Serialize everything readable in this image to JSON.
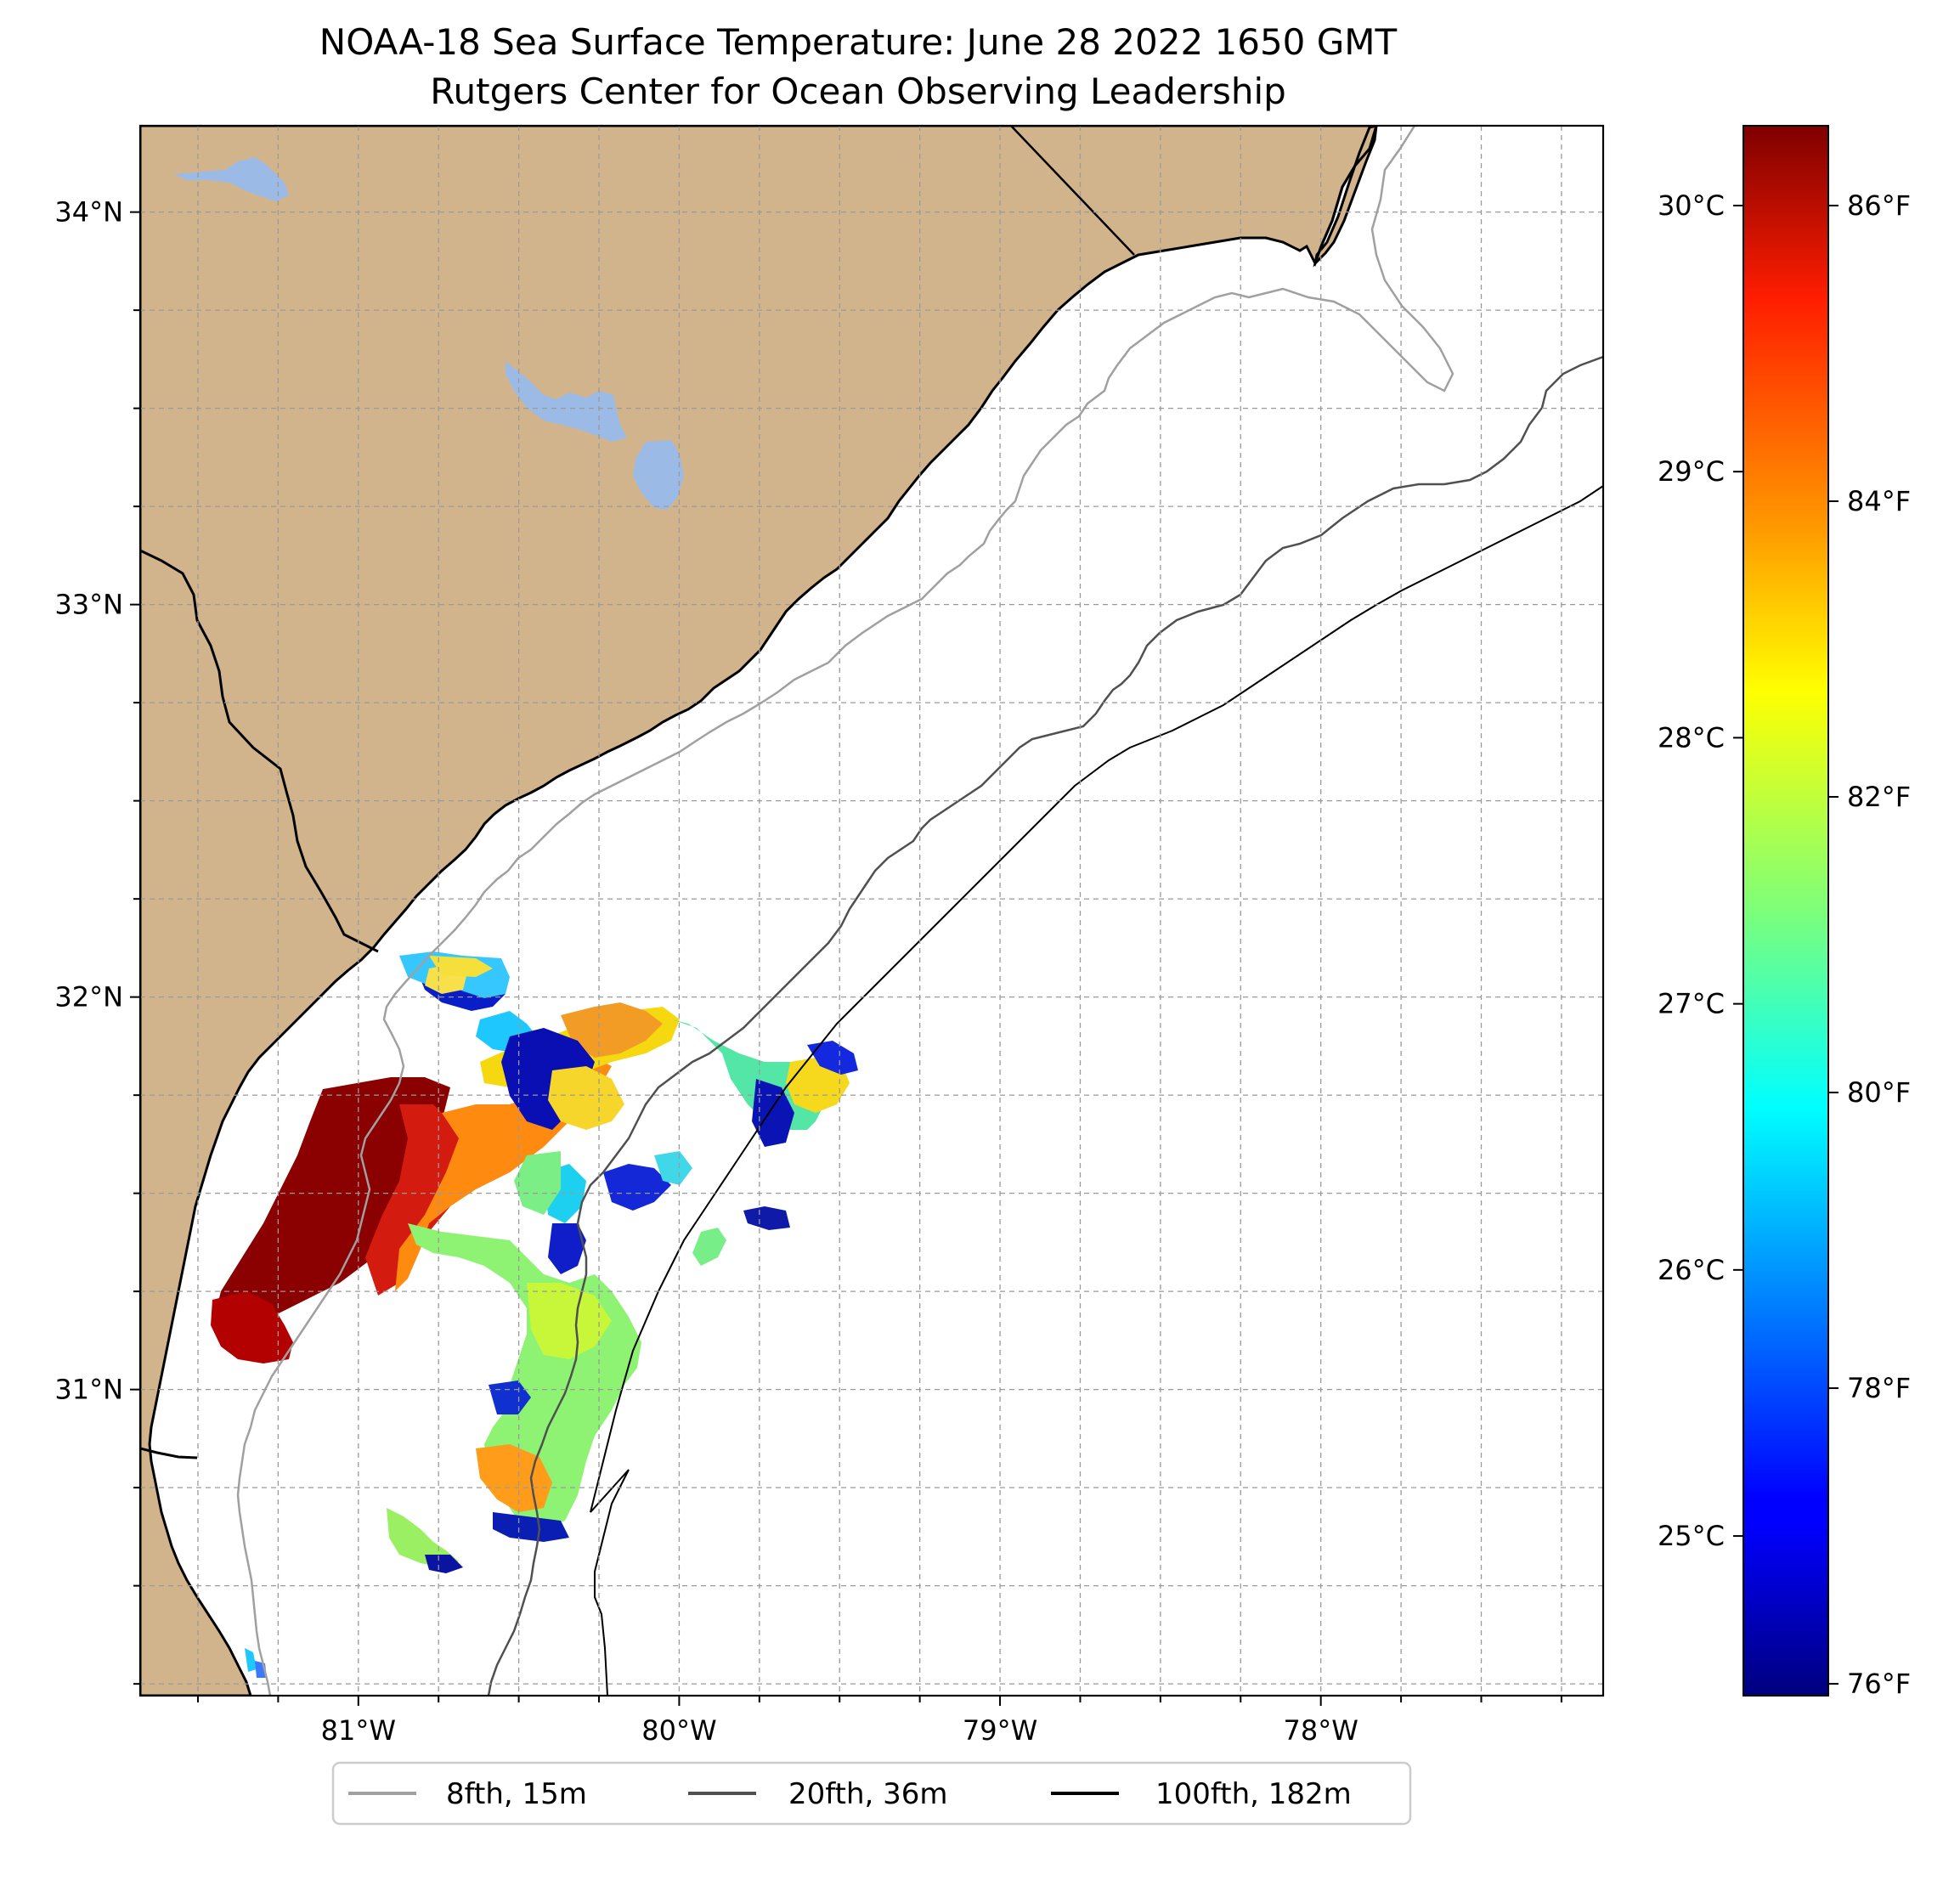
{
  "title_line1": "NOAA-18 Sea Surface Temperature: June 28 2022 1650 GMT",
  "title_line2": "Rutgers Center for Ocean Observing Leadership",
  "map": {
    "lon_range": [
      -81.68,
      -77.12
    ],
    "lat_range": [
      30.22,
      34.22
    ],
    "lat_labels": [
      {
        "value": 34,
        "text": "34°N"
      },
      {
        "value": 33,
        "text": "33°N"
      },
      {
        "value": 32,
        "text": "32°N"
      },
      {
        "value": 31,
        "text": "31°N"
      }
    ],
    "lon_labels": [
      {
        "value": -81,
        "text": "81°W"
      },
      {
        "value": -80,
        "text": "80°W"
      },
      {
        "value": -79,
        "text": "79°W"
      },
      {
        "value": -78,
        "text": "78°W"
      }
    ],
    "gridlines": true,
    "land_color": "#d2b48c",
    "lake_color": "#9cbae6",
    "ocean_color": "#ffffff"
  },
  "colorbar": {
    "colormap": "jet",
    "celsius_range": [
      24.4,
      30.3
    ],
    "celsius_labels": [
      "30°C",
      "29°C",
      "28°C",
      "27°C",
      "26°C",
      "25°C"
    ],
    "celsius_values": [
      30,
      29,
      28,
      27,
      26,
      25
    ],
    "fahrenheit_labels": [
      "86°F",
      "84°F",
      "82°F",
      "80°F",
      "78°F",
      "76°F"
    ],
    "fahrenheit_values": [
      86,
      84,
      82,
      80,
      78,
      76
    ]
  },
  "legend": {
    "placement": "bottom-center",
    "entries": [
      {
        "label": "8fth, 15m",
        "color": "#a0a0a0"
      },
      {
        "label": "20fth, 36m",
        "color": "#505050"
      },
      {
        "label": "100fth, 182m",
        "color": "#000000"
      }
    ]
  }
}
